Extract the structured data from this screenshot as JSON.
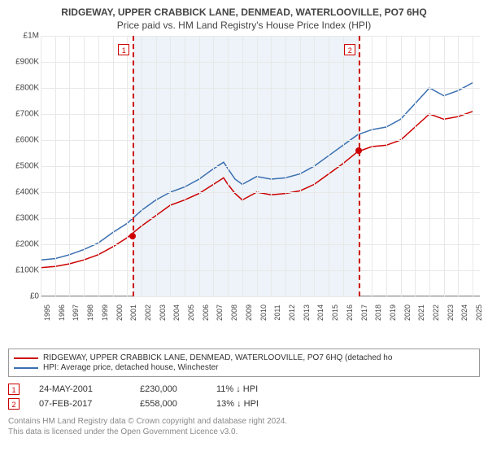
{
  "title_line1": "RIDGEWAY, UPPER CRABBICK LANE, DENMEAD, WATERLOOVILLE, PO7 6HQ",
  "title_line2": "Price paid vs. HM Land Registry's House Price Index (HPI)",
  "chart": {
    "type": "line",
    "background_color": "#ffffff",
    "band_color": "#edf3f9",
    "grid_color": "#e8e8e8",
    "axis_color": "#888",
    "ylim": [
      0,
      1000000
    ],
    "ytick_step": 100000,
    "yticks": [
      "£0",
      "£100K",
      "£200K",
      "£300K",
      "£400K",
      "£500K",
      "£600K",
      "£700K",
      "£800K",
      "£900K",
      "£1M"
    ],
    "xlim": [
      1995,
      2025.5
    ],
    "xticks": [
      "1995",
      "1996",
      "1997",
      "1998",
      "1999",
      "2000",
      "2001",
      "2002",
      "2003",
      "2004",
      "2005",
      "2006",
      "2007",
      "2008",
      "2009",
      "2010",
      "2011",
      "2012",
      "2013",
      "2014",
      "2015",
      "2016",
      "2017",
      "2018",
      "2019",
      "2020",
      "2021",
      "2022",
      "2023",
      "2024",
      "2025"
    ],
    "band_start": 2001.4,
    "band_end": 2017.1,
    "markers": [
      {
        "n": "1",
        "x": 2001.4,
        "sale_y": 230000
      },
      {
        "n": "2",
        "x": 2017.1,
        "sale_y": 558000
      }
    ],
    "series": [
      {
        "name": "red",
        "color": "#cc0000",
        "label": "RIDGEWAY, UPPER CRABBICK LANE, DENMEAD, WATERLOOVILLE, PO7 6HQ (detached ho",
        "data": [
          [
            1995,
            110000
          ],
          [
            1996,
            115000
          ],
          [
            1997,
            125000
          ],
          [
            1998,
            140000
          ],
          [
            1999,
            160000
          ],
          [
            2000,
            190000
          ],
          [
            2001,
            225000
          ],
          [
            2002,
            270000
          ],
          [
            2003,
            310000
          ],
          [
            2004,
            350000
          ],
          [
            2005,
            370000
          ],
          [
            2006,
            395000
          ],
          [
            2007,
            430000
          ],
          [
            2007.7,
            455000
          ],
          [
            2008,
            430000
          ],
          [
            2008.5,
            395000
          ],
          [
            2009,
            370000
          ],
          [
            2010,
            400000
          ],
          [
            2011,
            390000
          ],
          [
            2012,
            395000
          ],
          [
            2013,
            405000
          ],
          [
            2014,
            430000
          ],
          [
            2015,
            470000
          ],
          [
            2016,
            510000
          ],
          [
            2017,
            555000
          ],
          [
            2018,
            575000
          ],
          [
            2019,
            580000
          ],
          [
            2020,
            600000
          ],
          [
            2021,
            650000
          ],
          [
            2022,
            700000
          ],
          [
            2023,
            680000
          ],
          [
            2024,
            690000
          ],
          [
            2025,
            710000
          ]
        ]
      },
      {
        "name": "blue",
        "color": "#3a6fb0",
        "label": "HPI: Average price, detached house, Winchester",
        "data": [
          [
            1995,
            140000
          ],
          [
            1996,
            145000
          ],
          [
            1997,
            160000
          ],
          [
            1998,
            180000
          ],
          [
            1999,
            205000
          ],
          [
            2000,
            245000
          ],
          [
            2001,
            280000
          ],
          [
            2002,
            330000
          ],
          [
            2003,
            370000
          ],
          [
            2004,
            400000
          ],
          [
            2005,
            420000
          ],
          [
            2006,
            450000
          ],
          [
            2007,
            490000
          ],
          [
            2007.7,
            515000
          ],
          [
            2008,
            490000
          ],
          [
            2008.5,
            450000
          ],
          [
            2009,
            430000
          ],
          [
            2010,
            460000
          ],
          [
            2011,
            450000
          ],
          [
            2012,
            455000
          ],
          [
            2013,
            470000
          ],
          [
            2014,
            500000
          ],
          [
            2015,
            540000
          ],
          [
            2016,
            580000
          ],
          [
            2017,
            620000
          ],
          [
            2018,
            640000
          ],
          [
            2019,
            650000
          ],
          [
            2020,
            680000
          ],
          [
            2021,
            740000
          ],
          [
            2022,
            800000
          ],
          [
            2023,
            770000
          ],
          [
            2024,
            790000
          ],
          [
            2025,
            820000
          ]
        ]
      }
    ]
  },
  "legend": [
    {
      "color": "#cc0000",
      "label": "RIDGEWAY, UPPER CRABBICK LANE, DENMEAD, WATERLOOVILLE, PO7 6HQ (detached ho"
    },
    {
      "color": "#3a6fb0",
      "label": "HPI: Average price, detached house, Winchester"
    }
  ],
  "sales": [
    {
      "n": "1",
      "date": "24-MAY-2001",
      "price": "£230,000",
      "delta": "11% ↓ HPI"
    },
    {
      "n": "2",
      "date": "07-FEB-2017",
      "price": "£558,000",
      "delta": "13% ↓ HPI"
    }
  ],
  "footer_line1": "Contains HM Land Registry data © Crown copyright and database right 2024.",
  "footer_line2": "This data is licensed under the Open Government Licence v3.0."
}
